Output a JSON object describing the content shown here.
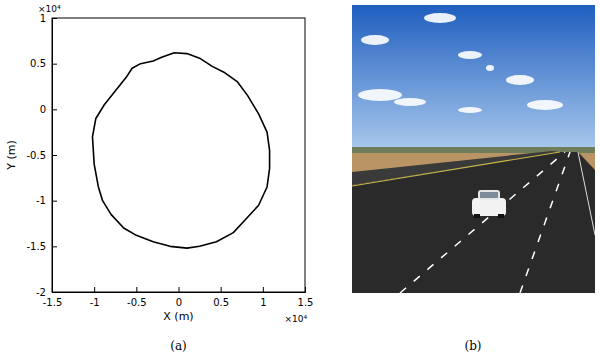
{
  "chart_data": {
    "type": "line",
    "caption": "(a)",
    "x_label": "X (m)",
    "y_label": "Y (m)",
    "annotations": [
      {
        "text": "×10⁴",
        "axis": "x"
      },
      {
        "text": "×10⁴",
        "axis": "y"
      }
    ],
    "x": [
      -0.05,
      0.1,
      0.25,
      0.4,
      0.55,
      0.7,
      0.82,
      0.95,
      1.05,
      1.08,
      1.08,
      1.05,
      0.95,
      0.8,
      0.65,
      0.45,
      0.25,
      0.1,
      -0.1,
      -0.3,
      -0.5,
      -0.65,
      -0.8,
      -0.9,
      -0.95,
      -1.0,
      -1.02,
      -0.98,
      -0.88,
      -0.75,
      -0.62,
      -0.55,
      -0.45,
      -0.3,
      -0.2,
      -0.05
    ],
    "values": [
      0.62,
      0.61,
      0.56,
      0.47,
      0.4,
      0.3,
      0.15,
      -0.05,
      -0.25,
      -0.45,
      -0.65,
      -0.85,
      -1.05,
      -1.2,
      -1.35,
      -1.45,
      -1.5,
      -1.52,
      -1.5,
      -1.45,
      -1.38,
      -1.3,
      -1.15,
      -1.0,
      -0.85,
      -0.6,
      -0.3,
      -0.1,
      0.05,
      0.2,
      0.35,
      0.45,
      0.5,
      0.53,
      0.57,
      0.62
    ],
    "color": "#000000",
    "xlim": [
      -1.5,
      1.5
    ],
    "xticks": [
      -1.5,
      -1,
      -0.5,
      0,
      0.5,
      1,
      1.5
    ],
    "ylim": [
      -2,
      1
    ],
    "yticks": [
      -2,
      -1.5,
      -1,
      -0.5,
      0,
      0.5,
      1
    ],
    "grid": false
  },
  "photo_panel": {
    "caption": "(b)"
  }
}
